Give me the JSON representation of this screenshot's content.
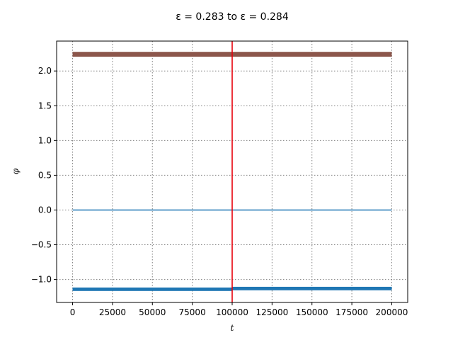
{
  "chart_data": {
    "type": "line",
    "title": "ε = 0.283 to ε = 0.284",
    "xlabel": "t",
    "ylabel": "φ",
    "xlim": [
      -10000,
      210000
    ],
    "ylim": [
      -1.33,
      2.43
    ],
    "xticks": [
      0,
      25000,
      50000,
      75000,
      100000,
      125000,
      150000,
      175000,
      200000
    ],
    "xtick_labels": [
      "0",
      "25000",
      "50000",
      "75000",
      "100000",
      "125000",
      "150000",
      "175000",
      "200000"
    ],
    "yticks": [
      -1.0,
      -0.5,
      0.0,
      0.5,
      1.0,
      1.5,
      2.0
    ],
    "ytick_labels": [
      "−1.0",
      "−0.5",
      "0.0",
      "0.5",
      "1.0",
      "1.5",
      "2.0"
    ],
    "grid": true,
    "series": [
      {
        "x": [
          0,
          200000
        ],
        "y": [
          2.24,
          2.24
        ],
        "color": "#8c564b",
        "band": 0.07
      },
      {
        "x": [
          0,
          200000
        ],
        "y": [
          0.0,
          0.0
        ],
        "color": "#1f77b4",
        "band": 0
      },
      {
        "x": [
          0,
          100000
        ],
        "y": [
          -1.14,
          -1.14
        ],
        "color": "#1f77b4",
        "band": 0.05
      },
      {
        "x": [
          100000,
          200000
        ],
        "y": [
          -1.13,
          -1.13
        ],
        "color": "#1f77b4",
        "band": 0.05
      }
    ],
    "vline": {
      "x": 100000,
      "color": "#e8000b"
    }
  }
}
